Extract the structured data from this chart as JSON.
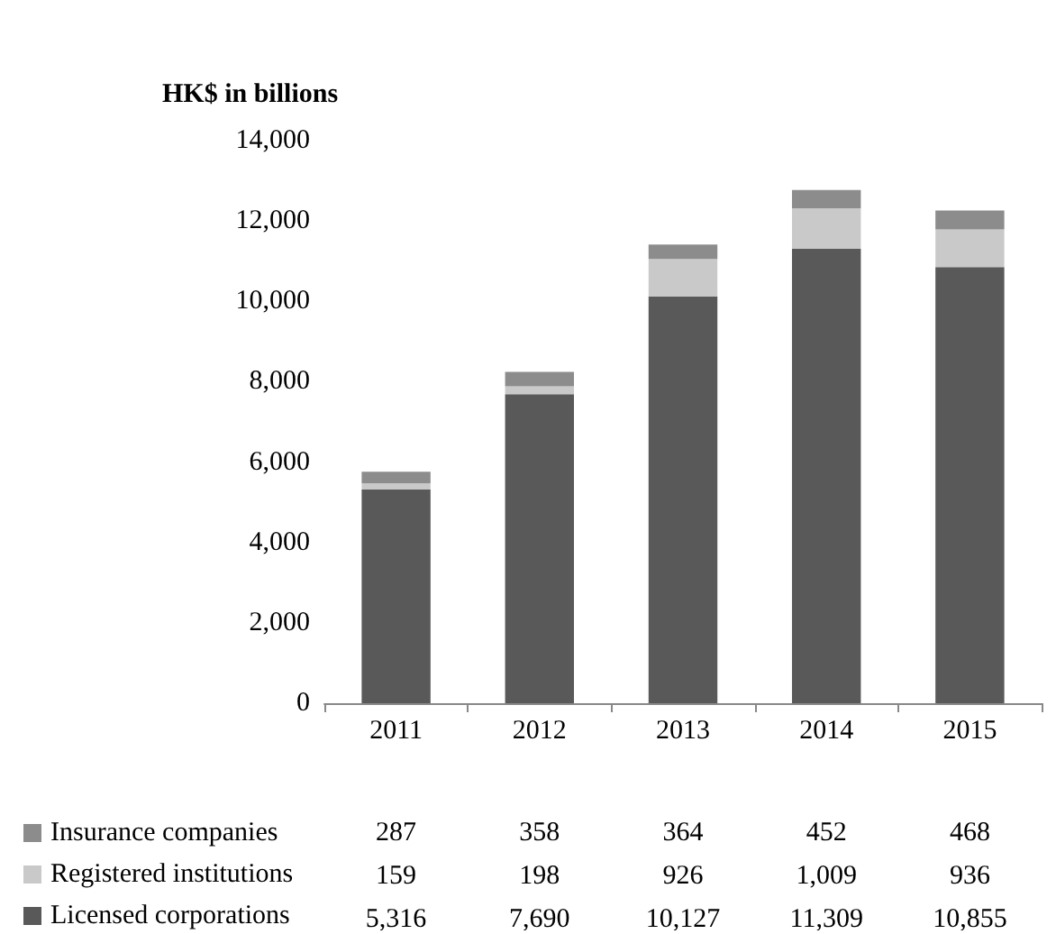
{
  "chart_data": {
    "type": "bar",
    "ylabel": "HK$ in billions",
    "categories": [
      "2011",
      "2012",
      "2013",
      "2014",
      "2015"
    ],
    "stacked": true,
    "legend": "bottom left",
    "grid": false,
    "ylim": [
      0,
      14000
    ],
    "yticks": [
      0,
      {
        "value": 2000,
        "label": "2,000"
      },
      {
        "value": 4000,
        "label": "4,000"
      },
      {
        "value": 6000,
        "label": "6,000"
      },
      {
        "value": 8000,
        "label": "8,000"
      },
      {
        "value": 10000,
        "label": "10,000"
      },
      {
        "value": 12000,
        "label": "12,000"
      },
      {
        "value": 14000,
        "label": "14,000"
      }
    ],
    "series": [
      {
        "name": "Licensed corporations",
        "color": "#595959",
        "values": [
          5316,
          7690,
          10127,
          11309,
          10855
        ],
        "value_labels": [
          "5,316",
          "7,690",
          "10,127",
          "11,309",
          "10,855"
        ]
      },
      {
        "name": "Registered institutions",
        "color": "#c9c9c9",
        "values": [
          159,
          198,
          926,
          1009,
          936
        ],
        "value_labels": [
          "159",
          "198",
          "926",
          "1,009",
          "936"
        ]
      },
      {
        "name": "Insurance companies",
        "color": "#8c8c8c",
        "values": [
          287,
          358,
          364,
          452,
          468
        ],
        "value_labels": [
          "287",
          "358",
          "364",
          "452",
          "468"
        ]
      }
    ]
  }
}
